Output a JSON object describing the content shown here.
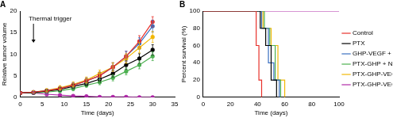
{
  "chart_data": [
    {
      "type": "line",
      "title": "A",
      "xlabel": "Time (days)",
      "ylabel": "Relative tumor volume",
      "x": [
        0,
        3,
        6,
        9,
        12,
        15,
        18,
        21,
        24,
        27,
        30
      ],
      "xlim": [
        0,
        35
      ],
      "xticks": [
        0,
        5,
        10,
        15,
        20,
        25,
        30,
        35
      ],
      "ylim": [
        0,
        20
      ],
      "yticks": [
        0,
        5,
        10,
        15,
        20
      ],
      "grid": false,
      "marker": "circle",
      "annotations": [
        {
          "text": "Thermal trigger",
          "x": 3
        }
      ],
      "series": [
        {
          "name": "Control",
          "color": "#e8302a",
          "values": [
            1,
            1.2,
            1.5,
            2,
            2.8,
            3.8,
            5,
            7,
            9.5,
            13,
            17.5
          ],
          "errors": [
            0.1,
            0.3,
            0.4,
            0.5,
            0.6,
            0.7,
            0.8,
            1,
            1.2,
            1.3,
            1.2
          ]
        },
        {
          "name": "PTX",
          "color": "#000000",
          "values": [
            1,
            1.1,
            1.4,
            1.8,
            2.5,
            3.2,
            4.2,
            5.5,
            7.5,
            9,
            11
          ],
          "errors": [
            0.1,
            0.3,
            0.3,
            0.4,
            0.5,
            0.6,
            0.7,
            0.8,
            1,
            1.1,
            1.2
          ]
        },
        {
          "name": "GHP-VEGF + NIR",
          "color": "#3a6fc0",
          "values": [
            1,
            1.2,
            1.5,
            2,
            2.8,
            3.8,
            5,
            7,
            9.5,
            12.5,
            16.5
          ],
          "errors": [
            0.1,
            0.3,
            0.4,
            0.5,
            0.6,
            0.7,
            0.8,
            1,
            1.2,
            1.3,
            1.4
          ]
        },
        {
          "name": "PTX-GHP + NIR",
          "color": "#4cb050",
          "values": [
            1,
            1,
            1.2,
            1.5,
            2,
            2.8,
            3.5,
            4.5,
            6,
            7.5,
            9.5
          ],
          "errors": [
            0.1,
            0.2,
            0.3,
            0.4,
            0.5,
            0.5,
            0.6,
            0.7,
            0.8,
            0.9,
            1
          ]
        },
        {
          "name": "PTX-GHP-VEGF",
          "color": "#f2b705",
          "values": [
            1,
            1.2,
            1.6,
            2.2,
            3,
            4,
            5.5,
            7,
            9,
            11.5,
            14
          ],
          "errors": [
            0.1,
            0.3,
            0.4,
            0.5,
            0.6,
            0.7,
            0.8,
            1,
            1.1,
            1.2,
            1.3
          ]
        },
        {
          "name": "PTX-GHP-VEGF + NIR",
          "color": "#b02aa8",
          "values": [
            1,
            1,
            0.7,
            0.5,
            0.3,
            0.2,
            0.1,
            0.1,
            0.1,
            0,
            0
          ],
          "errors": [
            0.1,
            0.3,
            0.3,
            0.2,
            0.2,
            0.1,
            0.1,
            0.1,
            0.1,
            0.1,
            0.1
          ]
        }
      ]
    },
    {
      "type": "line",
      "title": "B",
      "xlabel": "Time (days)",
      "ylabel": "Percent survival (%)",
      "xlim": [
        0,
        100
      ],
      "xticks": [
        0,
        20,
        40,
        60,
        80,
        100
      ],
      "ylim": [
        0,
        100
      ],
      "yticks": [
        0,
        20,
        40,
        60,
        80,
        100
      ],
      "grid": false,
      "marker": "none",
      "line_style": "step",
      "legend": "right",
      "series": [
        {
          "name": "Control",
          "color": "#e8302a",
          "x": [
            0,
            39,
            41,
            43
          ],
          "values": [
            100,
            60,
            20,
            0
          ]
        },
        {
          "name": "PTX",
          "color": "#000000",
          "x": [
            0,
            42,
            46,
            50,
            54
          ],
          "values": [
            100,
            80,
            60,
            20,
            0
          ]
        },
        {
          "name": "GHP-VEGF + NIR",
          "color": "#3a6fc0",
          "x": [
            0,
            43,
            48,
            52,
            56
          ],
          "values": [
            100,
            80,
            40,
            20,
            0
          ]
        },
        {
          "name": "PTX-GHP + NIR",
          "color": "#4cb050",
          "x": [
            0,
            45,
            49,
            53,
            57
          ],
          "values": [
            100,
            80,
            60,
            20,
            0
          ]
        },
        {
          "name": "PTX-GHP-VEGF",
          "color": "#f2b705",
          "x": [
            0,
            44,
            50,
            55,
            60
          ],
          "values": [
            100,
            80,
            60,
            20,
            0
          ]
        },
        {
          "name": "PTX-GHP-VEGF + NIR",
          "color": "#b02aa8",
          "x": [
            0,
            100
          ],
          "values": [
            100,
            100
          ]
        }
      ]
    }
  ]
}
